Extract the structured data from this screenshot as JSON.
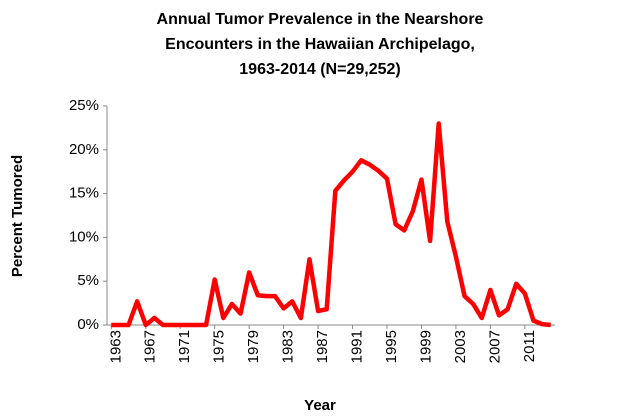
{
  "chart_data": {
    "type": "line",
    "title": [
      "Annual Tumor Prevalence in the Nearshore",
      "Encounters in the Hawaiian Archipelago,",
      "1963-2014 (N=29,252)"
    ],
    "x_label": "Year",
    "y_label": "Percent Tumored",
    "categories": [
      "1963",
      null,
      null,
      null,
      "1967",
      null,
      null,
      null,
      "1971",
      null,
      null,
      null,
      "1975",
      null,
      null,
      null,
      "1979",
      null,
      null,
      null,
      "1983",
      null,
      null,
      null,
      "1987",
      null,
      null,
      null,
      "1991",
      null,
      null,
      null,
      "1995",
      null,
      null,
      null,
      "1999",
      null,
      null,
      null,
      "2003",
      null,
      null,
      null,
      "2007",
      null,
      null,
      null,
      "2011",
      null,
      null,
      null
    ],
    "series": [
      {
        "name": "Percent Tumored",
        "color": "#ff0000",
        "values": [
          0,
          0,
          0,
          2.7,
          0,
          0.8,
          0,
          0,
          0,
          0,
          0,
          0,
          5.2,
          0.8,
          2.4,
          1.3,
          6.0,
          3.4,
          3.3,
          3.3,
          1.9,
          2.7,
          0.8,
          7.5,
          1.6,
          1.8,
          15.3,
          16.5,
          17.5,
          18.8,
          18.3,
          17.6,
          16.7,
          11.5,
          10.8,
          13.0,
          16.6,
          9.6,
          23.0,
          11.8,
          7.8,
          3.3,
          2.4,
          0.8,
          4.0,
          1.1,
          1.8,
          4.7,
          3.6,
          0.5,
          0.1,
          0
        ]
      }
    ],
    "ylim": [
      0,
      25
    ],
    "yticks": [
      {
        "value": 0,
        "label": "0%"
      },
      {
        "value": 5,
        "label": "5%"
      },
      {
        "value": 10,
        "label": "10%"
      },
      {
        "value": 15,
        "label": "15%"
      },
      {
        "value": 20,
        "label": "20%"
      },
      {
        "value": 25,
        "label": "25%"
      }
    ],
    "grid": false
  }
}
